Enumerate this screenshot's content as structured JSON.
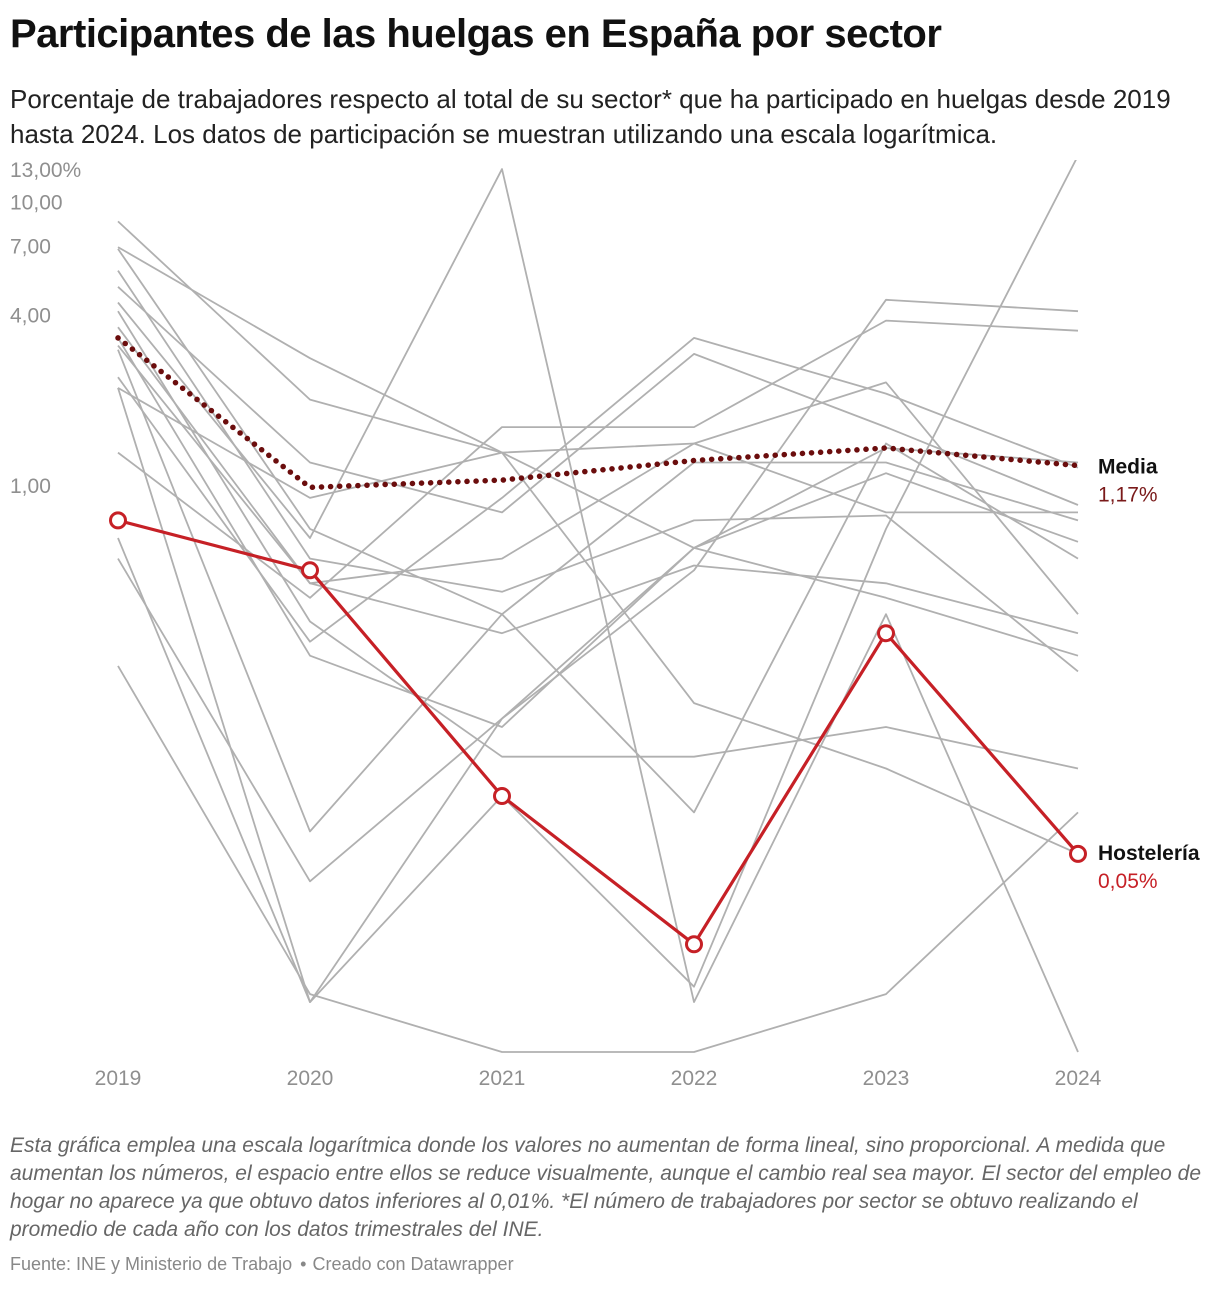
{
  "header": {
    "title": "Participantes de las huelgas en España por sector",
    "subtitle": "Porcentaje de trabajadores respecto al total de su sector* que ha participado en huelgas desde 2019 hasta 2024. Los datos de participación se muestran utilizando una escala logarítmica."
  },
  "footer": {
    "note": "Esta gráfica emplea una escala logarítmica donde los valores no aumentan de forma lineal, sino proporcional. A medida que aumentan los números, el espacio entre ellos se reduce visualmente, aunque el cambio real sea mayor. El sector del empleo de hogar no aparece ya que obtuvo datos inferiores al 0,01%. *El número de trabajadores por sector se obtuvo realizando el promedio de cada año con los datos trimestrales del INE.",
    "source": "Fuente: INE y Ministerio de Trabajo",
    "separator": "•",
    "credit": "Creado con Datawrapper"
  },
  "chart_data": {
    "type": "line",
    "scale": "log",
    "x": [
      "2019",
      "2020",
      "2021",
      "2022",
      "2023",
      "2024"
    ],
    "y_ticks": [
      {
        "value": 13,
        "label": "13,00%"
      },
      {
        "value": 10,
        "label": "10,00"
      },
      {
        "value": 7,
        "label": "7,00"
      },
      {
        "value": 4,
        "label": "4,00"
      },
      {
        "value": 1,
        "label": "1,00"
      }
    ],
    "ylim": [
      0.01,
      14
    ],
    "grid": false,
    "colors": {
      "background_series": "#b0b0b0",
      "media": "#6b0d0d",
      "media_value": "#7a1a1a",
      "highlight": "#c62026",
      "axis_text": "#8f8f8f"
    },
    "background_series": [
      {
        "values": [
          8.5,
          2.0,
          1.3,
          0.6,
          1.35,
          1.2
        ]
      },
      {
        "values": [
          6.8,
          0.7,
          0.35,
          0.07,
          1.4,
          0.55
        ]
      },
      {
        "values": [
          5.0,
          1.2,
          0.8,
          2.9,
          1.6,
          0.85
        ]
      },
      {
        "values": [
          4.4,
          0.65,
          13.0,
          0.015,
          0.35,
          0.01
        ]
      },
      {
        "values": [
          3.1,
          0.45,
          0.55,
          1.4,
          2.3,
          0.35
        ]
      },
      {
        "values": [
          2.4,
          0.28,
          0.9,
          3.3,
          2.1,
          1.15
        ]
      },
      {
        "values": [
          1.3,
          0.4,
          1.6,
          1.6,
          3.8,
          3.5
        ]
      },
      {
        "values": [
          0.55,
          0.04,
          0.15,
          0.6,
          0.4,
          0.25
        ]
      },
      {
        "values": [
          6.9,
          2.8,
          1.3,
          0.17,
          0.1,
          0.05
        ]
      },
      {
        "values": [
          4.1,
          0.33,
          0.11,
          0.11,
          0.14,
          0.1
        ]
      },
      {
        "values": [
          0.23,
          0.016,
          0.01,
          0.01,
          0.016,
          0.07
        ]
      },
      {
        "values": [
          3.6,
          0.45,
          0.3,
          0.52,
          0.45,
          0.3
        ]
      },
      {
        "values": [
          5.7,
          0.55,
          0.42,
          0.75,
          0.78,
          0.22
        ]
      },
      {
        "values": [
          2.2,
          0.015,
          0.08,
          0.017,
          0.7,
          14.5
        ]
      },
      {
        "values": [
          3.0,
          0.06,
          0.35,
          1.2,
          1.2,
          0.75
        ]
      },
      {
        "values": [
          0.65,
          0.015,
          0.15,
          0.5,
          4.5,
          4.1
        ]
      },
      {
        "values": [
          2.2,
          0.9,
          1.3,
          1.4,
          0.8,
          0.8
        ]
      },
      {
        "values": [
          3.3,
          0.25,
          0.14,
          0.6,
          1.1,
          0.63
        ]
      }
    ],
    "series": [
      {
        "name": "Media",
        "values": [
          3.3,
          0.98,
          1.04,
          1.22,
          1.35,
          1.17
        ],
        "label": "1,17%"
      },
      {
        "name": "Hostelería",
        "values": [
          0.75,
          0.5,
          0.08,
          0.024,
          0.3,
          0.05
        ],
        "label": "0,05%"
      }
    ]
  }
}
